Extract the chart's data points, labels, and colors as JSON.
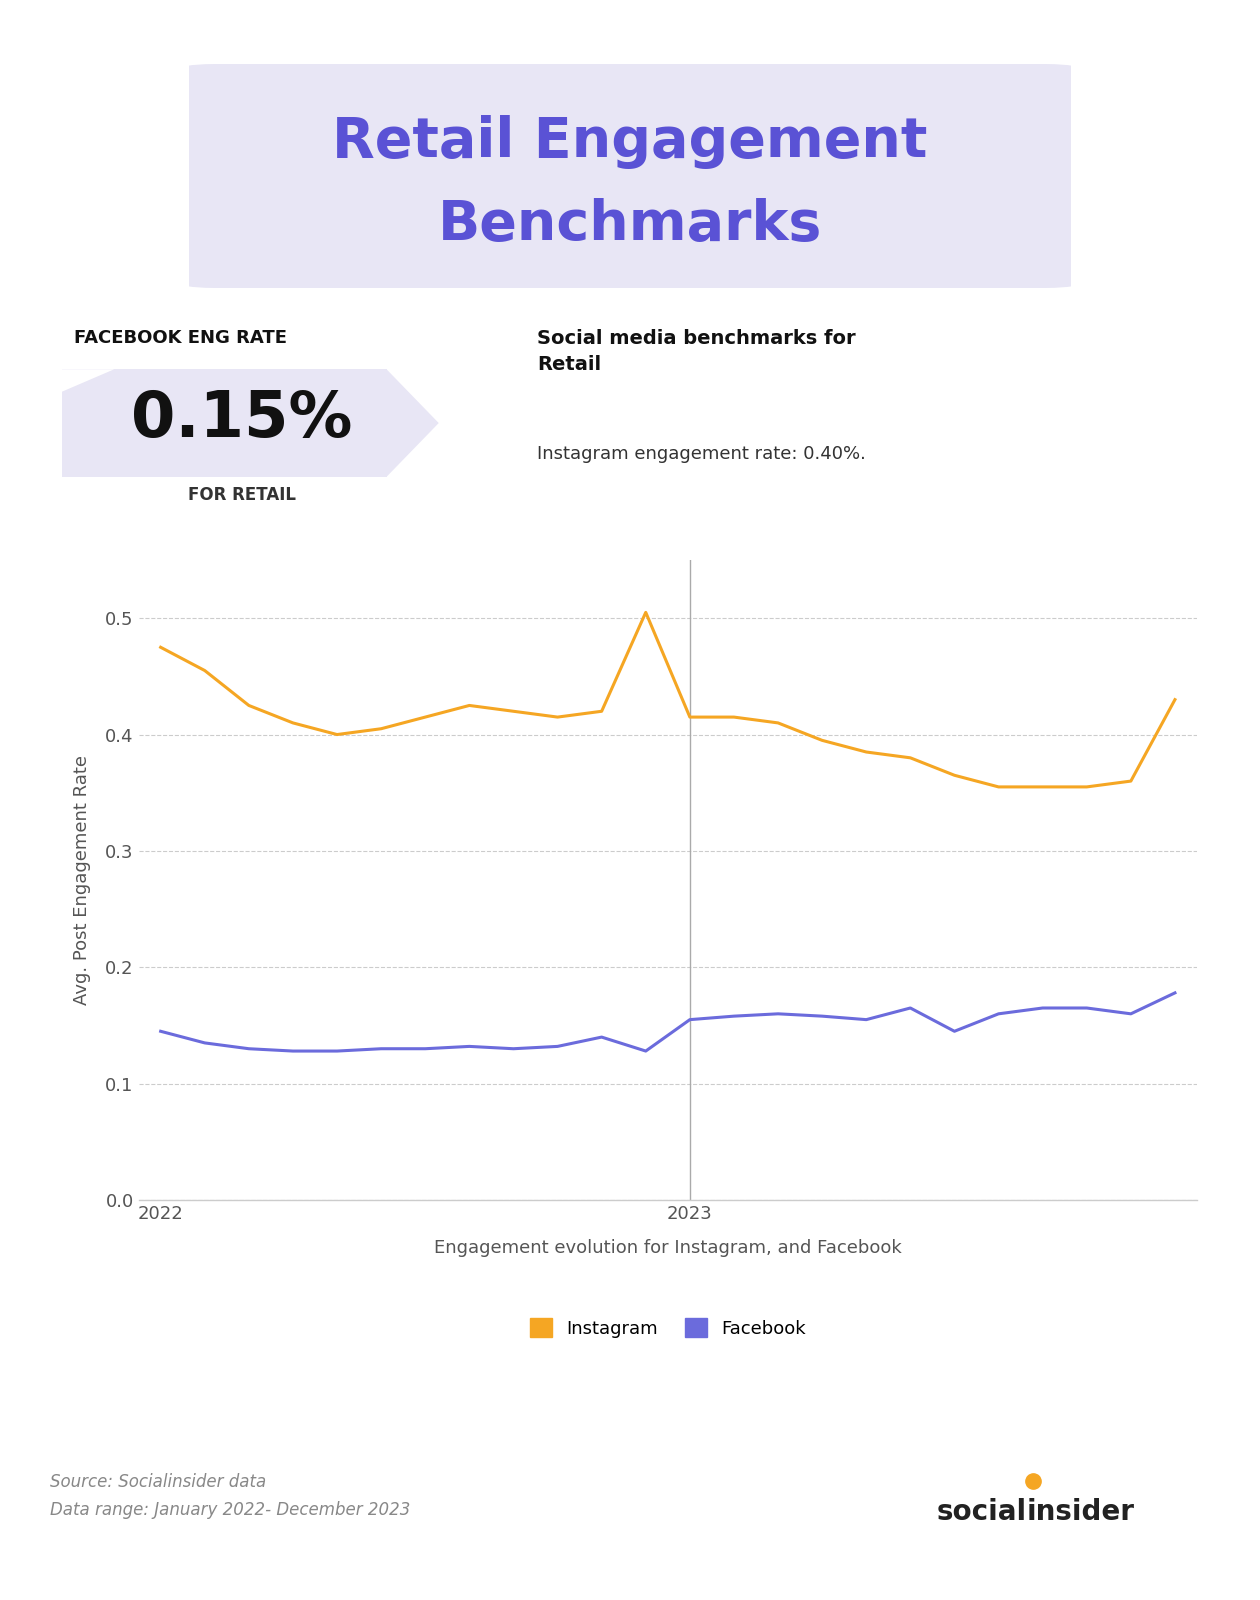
{
  "title_line1": "Retail Engagement",
  "title_line2": "Benchmarks",
  "title_color": "#5a52d5",
  "title_bg_color": "#e8e6f5",
  "fb_eng_rate_label": "FACEBOOK ENG RATE",
  "fb_eng_rate_value": "0.15%",
  "fb_eng_rate_sublabel": "FOR RETAIL",
  "social_bench_title": "Social media benchmarks for\nRetail",
  "social_bench_text": "Instagram engagement rate: 0.40%.",
  "xlabel": "Engagement evolution for Instagram, and Facebook",
  "ylabel": "Avg. Post Engagement Rate",
  "source_text": "Source: Socialinsider data\nData range: January 2022- December 2023",
  "instagram_color": "#f5a623",
  "facebook_color": "#6b6bdc",
  "grid_color": "#cccccc",
  "bg_color": "#ffffff",
  "yticks": [
    0,
    0.1,
    0.2,
    0.3,
    0.4,
    0.5
  ],
  "xtick_labels": [
    "2022",
    "2023"
  ],
  "vline_x": 12,
  "instagram_data": [
    0.475,
    0.455,
    0.425,
    0.41,
    0.4,
    0.405,
    0.415,
    0.425,
    0.42,
    0.415,
    0.42,
    0.505,
    0.415,
    0.415,
    0.41,
    0.395,
    0.385,
    0.38,
    0.365,
    0.355,
    0.355,
    0.355,
    0.36,
    0.43
  ],
  "facebook_data": [
    0.145,
    0.135,
    0.13,
    0.128,
    0.128,
    0.13,
    0.13,
    0.132,
    0.13,
    0.132,
    0.14,
    0.128,
    0.155,
    0.158,
    0.16,
    0.158,
    0.155,
    0.165,
    0.145,
    0.16,
    0.165,
    0.165,
    0.16,
    0.178
  ],
  "ylim": [
    0,
    0.55
  ],
  "figsize": [
    12.6,
    16.0
  ],
  "dpi": 100
}
